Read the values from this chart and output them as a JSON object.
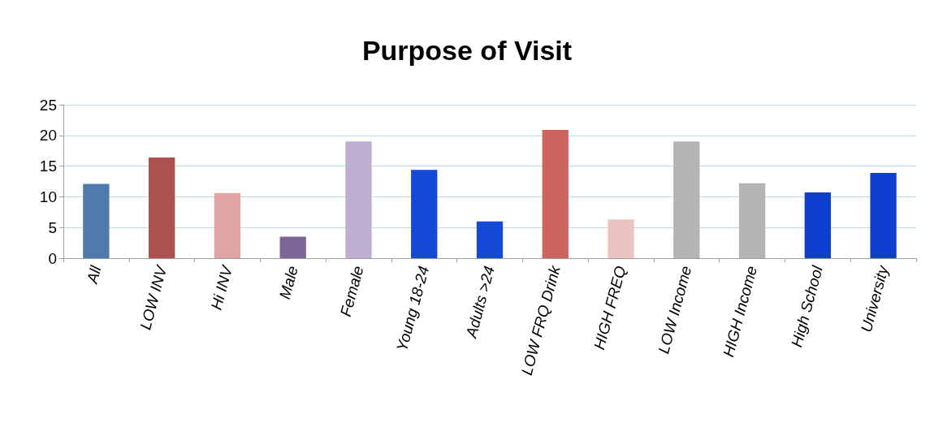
{
  "chart_data": {
    "type": "bar",
    "title": "Purpose of Visit",
    "categories": [
      "All",
      "LOW INV",
      "Hi INV",
      "Male",
      "Female",
      "Young 18-24",
      "Adults >24",
      "LOW FRQ Drink",
      "HIGH FREQ",
      "LOW Income",
      "HIGH Income",
      "High School",
      "University"
    ],
    "values": [
      12.1,
      16.4,
      10.6,
      3.5,
      19.0,
      14.4,
      6.0,
      20.9,
      6.3,
      19.0,
      12.2,
      10.7,
      13.9
    ],
    "colors": [
      "#4f7aab",
      "#ab524d",
      "#e0a4a2",
      "#7d6496",
      "#bfaed2",
      "#1448d6",
      "#1448d6",
      "#cc655d",
      "#ebc3c2",
      "#b4b4b4",
      "#b4b4b4",
      "#0f3fd0",
      "#0f3fd0"
    ],
    "ylim": [
      0,
      25
    ],
    "yticks": [
      0,
      5,
      10,
      15,
      20,
      25
    ],
    "grid": "y"
  }
}
